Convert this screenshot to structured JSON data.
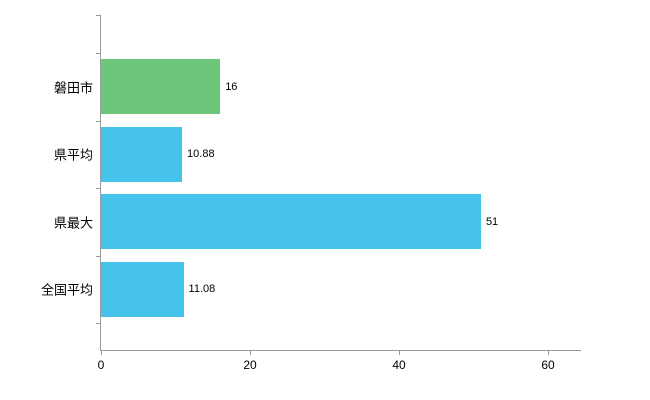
{
  "chart_data": {
    "type": "bar",
    "orientation": "horizontal",
    "title": "",
    "xlabel": "",
    "ylabel": "",
    "categories": [
      "磐田市",
      "県平均",
      "県最大",
      "全国平均"
    ],
    "values": [
      16,
      10.88,
      51,
      11.08
    ],
    "value_labels": [
      "16",
      "10.88",
      "51",
      "11.08"
    ],
    "bar_colors": [
      "#6dc77b",
      "#45c3ea",
      "#45c3ea",
      "#45c3ea"
    ],
    "xlim": [
      0,
      60
    ],
    "x_ticks": [
      0,
      20,
      40,
      60
    ],
    "x_tick_labels": [
      "0",
      "20",
      "40",
      "60"
    ],
    "grid": false,
    "legend": "none",
    "axis_color": "#9a9a9a",
    "text_color": "#000000",
    "background_color": "#ffffff"
  }
}
